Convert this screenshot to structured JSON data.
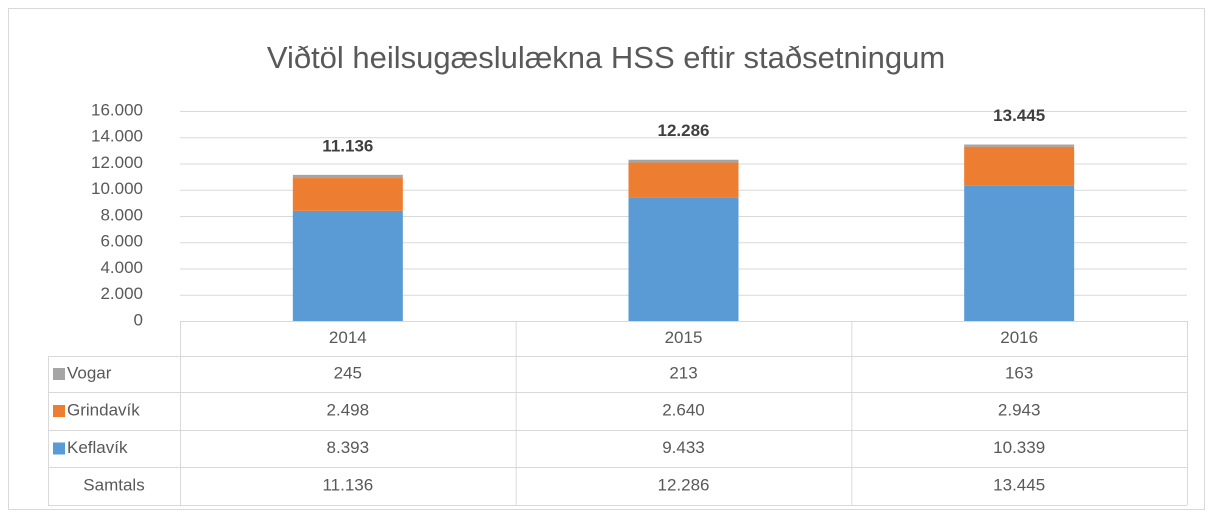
{
  "chart_data": {
    "type": "stacked-bar",
    "title": "Viðtöl heilsugæslulækna HSS eftir staðsetningum",
    "categories": [
      "2014",
      "2015",
      "2016"
    ],
    "series": [
      {
        "name": "Keflavík",
        "color": "#5b9bd5",
        "values": [
          8393,
          9433,
          10339
        ],
        "value_labels": [
          "8.393",
          "9.433",
          "10.339"
        ]
      },
      {
        "name": "Grindavík",
        "color": "#ed7d31",
        "values": [
          2498,
          2640,
          2943
        ],
        "value_labels": [
          "2.498",
          "2.640",
          "2.943"
        ]
      },
      {
        "name": "Vogar",
        "color": "#a5a5a5",
        "values": [
          245,
          213,
          163
        ]
      }
    ],
    "totals": {
      "name": "Samtals",
      "values": [
        11136,
        12286,
        13445
      ],
      "value_labels": [
        "11.136",
        "12.286",
        "13.445"
      ]
    },
    "ylim": [
      0,
      16000
    ],
    "yticks": [
      0,
      {
        "value": 2000,
        "label": "2.000"
      },
      {
        "value": 4000,
        "label": "4.000"
      },
      {
        "value": 6000,
        "label": "6.000"
      },
      {
        "value": 8000,
        "label": "8.000"
      },
      {
        "value": 10000,
        "label": "10.000"
      },
      {
        "value": 12000,
        "label": "12.000"
      },
      {
        "value": 14000,
        "label": "14.000"
      },
      {
        "value": 16000,
        "label": "16.000"
      }
    ],
    "grid": true,
    "data_table": true
  }
}
